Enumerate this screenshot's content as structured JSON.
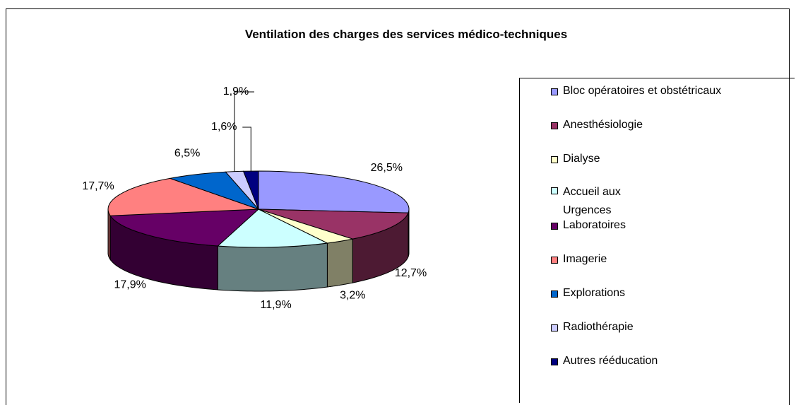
{
  "chart_data": {
    "type": "pie",
    "title": "Ventilation des charges des services médico-techniques",
    "categories": [
      "Bloc opératoires et obstétricaux",
      "Anesthésiologie",
      "Dialyse",
      "Accueil aux Urgences",
      "Laboratoires",
      "Imagerie",
      "Explorations",
      "Radiothérapie",
      "Autres rééducation"
    ],
    "values": [
      26.5,
      12.7,
      3.2,
      11.9,
      17.9,
      17.7,
      6.5,
      1.9,
      1.6
    ],
    "value_labels": [
      "26,5%",
      "12,7%",
      "3,2%",
      "11,9%",
      "17,9%",
      "17,7%",
      "6,5%",
      "1,9%",
      "1,6%"
    ],
    "colors": [
      "#9999ff",
      "#993366",
      "#ffffcc",
      "#ccffff",
      "#660066",
      "#ff8080",
      "#0066cc",
      "#ccccff",
      "#000080"
    ],
    "legend": "right"
  }
}
